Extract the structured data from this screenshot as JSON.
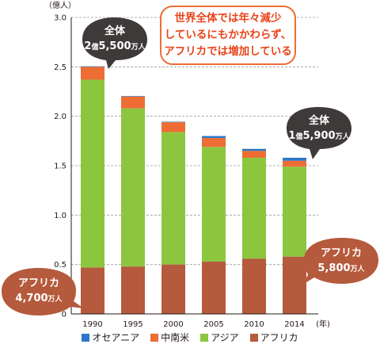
{
  "chart_data": {
    "type": "bar",
    "stacked": true,
    "unit_label": "（億人）",
    "x_unit_label": "(年)",
    "ylim": [
      0,
      3.0
    ],
    "yticks": [
      "0",
      "0.5",
      "1.0",
      "1.5",
      "2.0",
      "2.5",
      "3.0"
    ],
    "grid": true,
    "legend_position": "bottom",
    "categories": [
      "1990",
      "1995",
      "2000",
      "2005",
      "2010",
      "2014"
    ],
    "series": [
      {
        "name": "アフリカ",
        "color": "#b55a3c",
        "values": [
          0.47,
          0.48,
          0.5,
          0.53,
          0.56,
          0.58
        ]
      },
      {
        "name": "アジア",
        "color": "#8cc63f",
        "values": [
          1.9,
          1.6,
          1.34,
          1.16,
          1.02,
          0.91
        ]
      },
      {
        "name": "中南米",
        "color": "#ed6d35",
        "values": [
          0.13,
          0.12,
          0.1,
          0.09,
          0.07,
          0.06
        ]
      },
      {
        "name": "オセアニア",
        "color": "#2a78c5",
        "values": [
          0.005,
          0.005,
          0.005,
          0.02,
          0.02,
          0.03
        ]
      }
    ],
    "legend_order": [
      "オセアニア",
      "中南米",
      "アジア",
      "アフリカ"
    ]
  },
  "annotations": {
    "headline": [
      "世界全体では年々減少",
      "しているにもかかわらず、",
      "アフリカでは増加している"
    ],
    "total_1990": {
      "label": "全体",
      "num": "2",
      "oku": "億",
      "num2": "5,500",
      "man": "万人"
    },
    "total_2014": {
      "label": "全体",
      "num": "1",
      "oku": "億",
      "num2": "5,900",
      "man": "万人"
    },
    "africa_1990": {
      "label": "アフリカ",
      "num": "4,700",
      "man": "万人"
    },
    "africa_2014": {
      "label": "アフリカ",
      "num": "5,800",
      "man": "万人"
    }
  },
  "colors": {
    "bubble_dark": "#3e3a39",
    "bubble_brown": "#b55a3c",
    "headline_border": "#ed6d35",
    "headline_text": "#e8441b"
  }
}
